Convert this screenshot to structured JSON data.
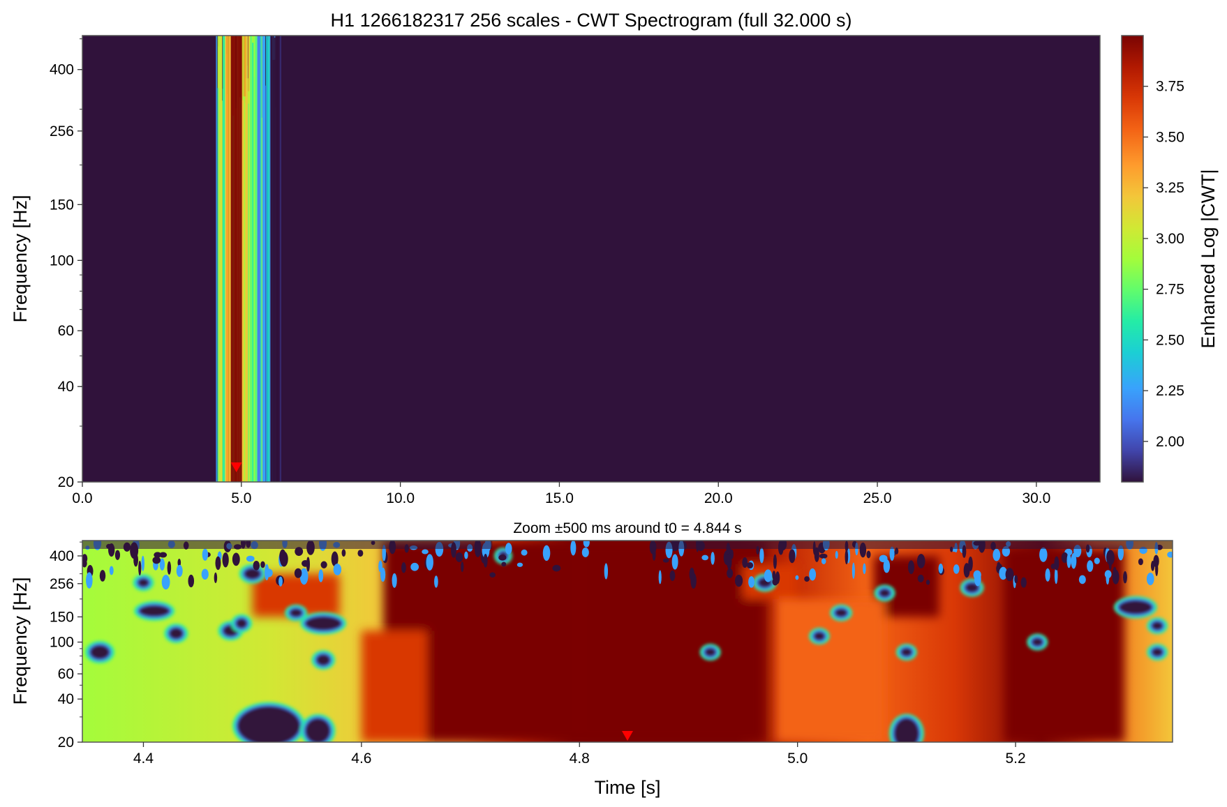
{
  "chart_data": [
    {
      "type": "heatmap",
      "title": "H1 1266182317 256 scales - CWT Spectrogram (full 32.000 s)",
      "xlabel": "",
      "ylabel": "Frequency [Hz]",
      "xlim": [
        0,
        32
      ],
      "ylim": [
        20,
        512
      ],
      "yscale": "log",
      "xticks": [
        0,
        5,
        10,
        15,
        20,
        25,
        30
      ],
      "xtick_labels": [
        "0.0",
        "5.0",
        "10.0",
        "15.0",
        "20.0",
        "25.0",
        "30.0"
      ],
      "yticks": [
        20,
        40,
        60,
        100,
        150,
        256,
        400
      ],
      "ytick_labels": [
        "20",
        "40",
        "60",
        "100",
        "150",
        "256",
        "400"
      ],
      "marker_time": 4.844,
      "burst_window": [
        4.2,
        6.2
      ],
      "colorbar": {
        "label": "Enhanced Log |CWT|",
        "range": [
          1.8,
          4.0
        ],
        "ticks": [
          2.0,
          2.25,
          2.5,
          2.75,
          3.0,
          3.25,
          3.5,
          3.75
        ],
        "tick_labels": [
          "2.00",
          "2.25",
          "2.50",
          "2.75",
          "3.00",
          "3.25",
          "3.50",
          "3.75"
        ],
        "colormap": "turbo"
      }
    },
    {
      "type": "heatmap",
      "title": "Zoom ±500 ms around t0 = 4.844 s",
      "xlabel": "Time [s]",
      "ylabel": "Frequency [Hz]",
      "xlim": [
        4.344,
        5.344
      ],
      "ylim": [
        20,
        512
      ],
      "yscale": "log",
      "xticks": [
        4.4,
        4.6,
        4.8,
        5.0,
        5.2
      ],
      "xtick_labels": [
        "4.4",
        "4.6",
        "4.8",
        "5.0",
        "5.2"
      ],
      "yticks": [
        20,
        40,
        60,
        100,
        150,
        256,
        400
      ],
      "ytick_labels": [
        "20",
        "40",
        "60",
        "100",
        "150",
        "256",
        "400"
      ],
      "marker_time": 4.844
    }
  ],
  "colors": {
    "background_low": "#30123b",
    "high": "#7a0403",
    "marker": "#ff0000",
    "frame": "#555555"
  }
}
